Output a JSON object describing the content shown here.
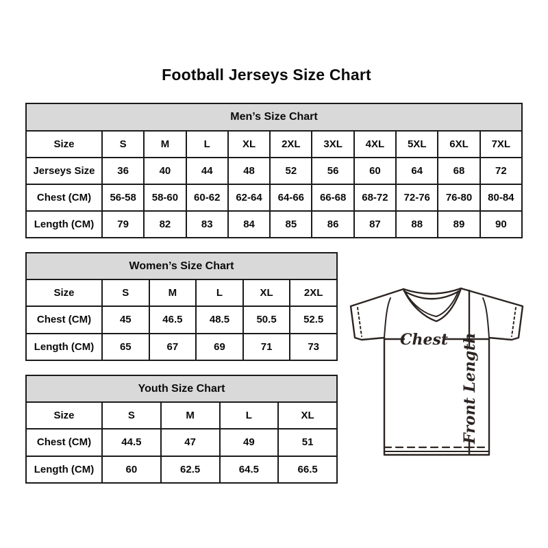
{
  "page": {
    "title": "Football Jerseys Size Chart"
  },
  "tables": {
    "men": {
      "title": "Men’s Size Chart",
      "rows": [
        {
          "label": "Size",
          "values": [
            "S",
            "M",
            "L",
            "XL",
            "2XL",
            "3XL",
            "4XL",
            "5XL",
            "6XL",
            "7XL"
          ]
        },
        {
          "label": "Jerseys Size",
          "values": [
            "36",
            "40",
            "44",
            "48",
            "52",
            "56",
            "60",
            "64",
            "68",
            "72"
          ]
        },
        {
          "label": "Chest (CM)",
          "values": [
            "56-58",
            "58-60",
            "60-62",
            "62-64",
            "64-66",
            "66-68",
            "68-72",
            "72-76",
            "76-80",
            "80-84"
          ]
        },
        {
          "label": "Length (CM)",
          "values": [
            "79",
            "82",
            "83",
            "84",
            "85",
            "86",
            "87",
            "88",
            "89",
            "90"
          ]
        }
      ]
    },
    "women": {
      "title": "Women’s Size Chart",
      "rows": [
        {
          "label": "Size",
          "values": [
            "S",
            "M",
            "L",
            "XL",
            "2XL"
          ]
        },
        {
          "label": "Chest (CM)",
          "values": [
            "45",
            "46.5",
            "48.5",
            "50.5",
            "52.5"
          ]
        },
        {
          "label": "Length (CM)",
          "values": [
            "65",
            "67",
            "69",
            "71",
            "73"
          ]
        }
      ]
    },
    "youth": {
      "title": "Youth Size Chart",
      "rows": [
        {
          "label": "Size",
          "values": [
            "S",
            "M",
            "L",
            "XL"
          ]
        },
        {
          "label": "Chest (CM)",
          "values": [
            "44.5",
            "47",
            "49",
            "51"
          ]
        },
        {
          "label": "Length (CM)",
          "values": [
            "60",
            "62.5",
            "64.5",
            "66.5"
          ]
        }
      ]
    }
  },
  "diagram": {
    "chest_label": "Chest",
    "front_length_label": "Front Length"
  },
  "colors": {
    "table_header_bg": "#d9d9d9",
    "table_border": "#1a1a1a",
    "jersey_line": "#2b2421",
    "text": "#0a0a0a",
    "background": "#ffffff"
  }
}
